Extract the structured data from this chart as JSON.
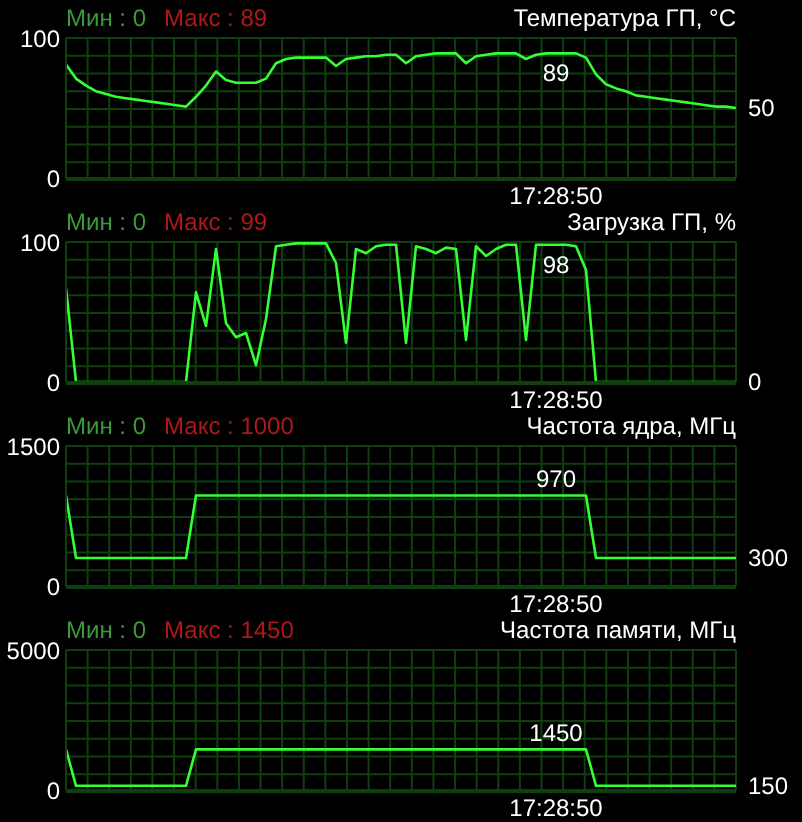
{
  "chart_data": [
    {
      "type": "line",
      "title": "Температура ГП, °C",
      "annotations": [
        "Мин : 0",
        "Макс : 89",
        "17:28:50"
      ],
      "categories": [
        null,
        null,
        null,
        null,
        null,
        null,
        null,
        null,
        null,
        null,
        null,
        null,
        null,
        null,
        null,
        null,
        null,
        null,
        null,
        null,
        null,
        null,
        null,
        null,
        null,
        null,
        null,
        null,
        null,
        null,
        null,
        null,
        null,
        null,
        null,
        null,
        null,
        null,
        null,
        null,
        null,
        null,
        null,
        null,
        null,
        null,
        null,
        null,
        null,
        null,
        null,
        null,
        null,
        null,
        null,
        null,
        null,
        null,
        null,
        null,
        null,
        null,
        null,
        null,
        null,
        null,
        null,
        null
      ],
      "ylim": [
        0,
        100
      ],
      "yticks": [
        0,
        100
      ],
      "grid": true,
      "series": [
        {
          "color": "#33ff33",
          "values": [
            81,
            71,
            66,
            62,
            60,
            58,
            57,
            56,
            55,
            54,
            53,
            52,
            51,
            58,
            66,
            76,
            70,
            68,
            68,
            68,
            71,
            82,
            85,
            86,
            86,
            86,
            86,
            80,
            85,
            86,
            87,
            87,
            88,
            88,
            82,
            87,
            88,
            89,
            89,
            89,
            82,
            87,
            88,
            89,
            89,
            89,
            85,
            88,
            89,
            89,
            89,
            89,
            86,
            74,
            67,
            64,
            62,
            59,
            58,
            57,
            56,
            55,
            54,
            53,
            52,
            51,
            51,
            50
          ],
          "value_labels": [
            null,
            null,
            null,
            null,
            null,
            null,
            null,
            null,
            null,
            null,
            null,
            null,
            null,
            null,
            null,
            null,
            null,
            null,
            null,
            null,
            null,
            null,
            null,
            null,
            null,
            null,
            null,
            null,
            null,
            null,
            null,
            null,
            null,
            null,
            null,
            null,
            null,
            null,
            null,
            null,
            null,
            null,
            null,
            null,
            null,
            null,
            null,
            null,
            null,
            "89",
            null,
            null,
            null,
            null,
            null,
            null,
            null,
            null,
            null,
            null,
            null,
            null,
            null,
            null,
            null,
            null,
            null,
            "50"
          ]
        }
      ]
    },
    {
      "type": "line",
      "title": "Загрузка ГП, %",
      "annotations": [
        "Мин : 0",
        "Макс : 99",
        "17:28:50"
      ],
      "categories": [
        null,
        null,
        null,
        null,
        null,
        null,
        null,
        null,
        null,
        null,
        null,
        null,
        null,
        null,
        null,
        null,
        null,
        null,
        null,
        null,
        null,
        null,
        null,
        null,
        null,
        null,
        null,
        null,
        null,
        null,
        null,
        null,
        null,
        null,
        null,
        null,
        null,
        null,
        null,
        null,
        null,
        null,
        null,
        null,
        null,
        null,
        null,
        null,
        null,
        null,
        null,
        null,
        null,
        null,
        null,
        null,
        null,
        null,
        null,
        null,
        null,
        null,
        null,
        null,
        null,
        null,
        null,
        null
      ],
      "ylim": [
        0,
        100
      ],
      "yticks": [
        0,
        100
      ],
      "grid": true,
      "series": [
        {
          "color": "#33ff33",
          "values": [
            67,
            0,
            0,
            0,
            0,
            0,
            0,
            0,
            0,
            0,
            0,
            0,
            0,
            64,
            40,
            95,
            42,
            32,
            35,
            12,
            45,
            97,
            98,
            99,
            99,
            99,
            99,
            85,
            28,
            95,
            92,
            97,
            98,
            98,
            28,
            97,
            95,
            92,
            96,
            95,
            30,
            97,
            90,
            95,
            98,
            98,
            30,
            98,
            98,
            98,
            98,
            97,
            80,
            0,
            0,
            0,
            0,
            0,
            0,
            0,
            0,
            0,
            0,
            0,
            0,
            0,
            0,
            0
          ],
          "value_labels": [
            null,
            null,
            null,
            null,
            null,
            null,
            null,
            null,
            null,
            null,
            null,
            null,
            null,
            null,
            null,
            null,
            null,
            null,
            null,
            null,
            null,
            null,
            null,
            null,
            null,
            null,
            null,
            null,
            null,
            null,
            null,
            null,
            null,
            null,
            null,
            null,
            null,
            null,
            null,
            null,
            null,
            null,
            null,
            null,
            null,
            null,
            null,
            null,
            null,
            "98",
            null,
            null,
            null,
            null,
            null,
            null,
            null,
            null,
            null,
            null,
            null,
            null,
            null,
            null,
            null,
            null,
            null,
            "0"
          ]
        }
      ]
    },
    {
      "type": "line",
      "title": "Частота ядра, МГц",
      "annotations": [
        "Мин : 0",
        "Макс : 1000",
        "17:28:50"
      ],
      "categories": [
        null,
        null,
        null,
        null,
        null,
        null,
        null,
        null,
        null,
        null,
        null,
        null,
        null,
        null,
        null,
        null,
        null,
        null,
        null,
        null,
        null,
        null,
        null,
        null,
        null,
        null,
        null,
        null,
        null,
        null,
        null,
        null,
        null,
        null,
        null,
        null,
        null,
        null,
        null,
        null,
        null,
        null,
        null,
        null,
        null,
        null,
        null,
        null,
        null,
        null,
        null,
        null,
        null,
        null,
        null,
        null,
        null,
        null,
        null,
        null,
        null,
        null,
        null,
        null,
        null,
        null,
        null,
        null
      ],
      "ylim": [
        0,
        1500
      ],
      "yticks": [
        0,
        1500
      ],
      "grid": true,
      "series": [
        {
          "color": "#33ff33",
          "values": [
            970,
            300,
            300,
            300,
            300,
            300,
            300,
            300,
            300,
            300,
            300,
            300,
            300,
            970,
            970,
            970,
            970,
            970,
            970,
            970,
            970,
            970,
            970,
            970,
            970,
            970,
            970,
            970,
            970,
            970,
            970,
            970,
            970,
            970,
            970,
            970,
            970,
            970,
            970,
            970,
            970,
            970,
            970,
            970,
            970,
            970,
            970,
            970,
            970,
            970,
            970,
            970,
            970,
            300,
            300,
            300,
            300,
            300,
            300,
            300,
            300,
            300,
            300,
            300,
            300,
            300,
            300,
            300
          ],
          "value_labels": [
            null,
            null,
            null,
            null,
            null,
            null,
            null,
            null,
            null,
            null,
            null,
            null,
            null,
            null,
            null,
            null,
            null,
            null,
            null,
            null,
            null,
            null,
            null,
            null,
            null,
            null,
            null,
            null,
            null,
            null,
            null,
            null,
            null,
            null,
            null,
            null,
            null,
            null,
            null,
            null,
            null,
            null,
            null,
            null,
            null,
            null,
            null,
            null,
            null,
            "970",
            null,
            null,
            null,
            null,
            null,
            null,
            null,
            null,
            null,
            null,
            null,
            null,
            null,
            null,
            null,
            null,
            null,
            "300"
          ]
        }
      ]
    },
    {
      "type": "line",
      "title": "Частота памяти, МГц",
      "annotations": [
        "Мин : 0",
        "Макс : 1450",
        "17:28:50"
      ],
      "categories": [
        null,
        null,
        null,
        null,
        null,
        null,
        null,
        null,
        null,
        null,
        null,
        null,
        null,
        null,
        null,
        null,
        null,
        null,
        null,
        null,
        null,
        null,
        null,
        null,
        null,
        null,
        null,
        null,
        null,
        null,
        null,
        null,
        null,
        null,
        null,
        null,
        null,
        null,
        null,
        null,
        null,
        null,
        null,
        null,
        null,
        null,
        null,
        null,
        null,
        null,
        null,
        null,
        null,
        null,
        null,
        null,
        null,
        null,
        null,
        null,
        null,
        null,
        null,
        null,
        null,
        null,
        null,
        null
      ],
      "ylim": [
        0,
        5000
      ],
      "yticks": [
        0,
        5000
      ],
      "grid": true,
      "series": [
        {
          "color": "#33ff33",
          "values": [
            1450,
            150,
            150,
            150,
            150,
            150,
            150,
            150,
            150,
            150,
            150,
            150,
            150,
            1450,
            1450,
            1450,
            1450,
            1450,
            1450,
            1450,
            1450,
            1450,
            1450,
            1450,
            1450,
            1450,
            1450,
            1450,
            1450,
            1450,
            1450,
            1450,
            1450,
            1450,
            1450,
            1450,
            1450,
            1450,
            1450,
            1450,
            1450,
            1450,
            1450,
            1450,
            1450,
            1450,
            1450,
            1450,
            1450,
            1450,
            1450,
            1450,
            1450,
            150,
            150,
            150,
            150,
            150,
            150,
            150,
            150,
            150,
            150,
            150,
            150,
            150,
            150,
            150
          ],
          "value_labels": [
            null,
            null,
            null,
            null,
            null,
            null,
            null,
            null,
            null,
            null,
            null,
            null,
            null,
            null,
            null,
            null,
            null,
            null,
            null,
            null,
            null,
            null,
            null,
            null,
            null,
            null,
            null,
            null,
            null,
            null,
            null,
            null,
            null,
            null,
            null,
            null,
            null,
            null,
            null,
            null,
            null,
            null,
            null,
            null,
            null,
            null,
            null,
            null,
            null,
            "1450",
            null,
            null,
            null,
            null,
            null,
            null,
            null,
            null,
            null,
            null,
            null,
            null,
            null,
            null,
            null,
            null,
            null,
            "150"
          ]
        }
      ]
    }
  ]
}
